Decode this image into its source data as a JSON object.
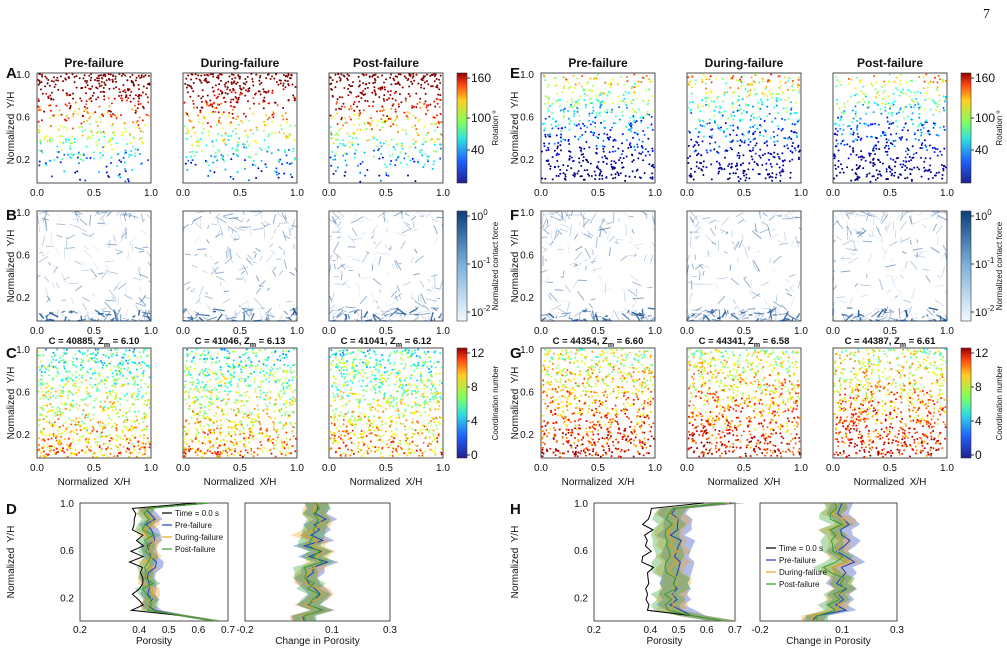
{
  "page_number": "7",
  "y_axis_label": "Normalized  Y/H",
  "x_axis_label": "Normalized  X/H",
  "y_ticks": [
    "0.2",
    "0.6",
    "1.0"
  ],
  "x_ticks": [
    "0.0",
    "0.5",
    "1.0"
  ],
  "halves": [
    {
      "letters": [
        "A",
        "B",
        "C",
        "D"
      ],
      "columns": [
        "Pre-failure",
        "During-failure",
        "Post-failure"
      ],
      "captions": [
        {
          "lead": "C = 40885, Z",
          "sub": "m",
          "tail": " = 6.10"
        },
        {
          "lead": "C = 41046, Z",
          "sub": "m",
          "tail": " = 6.13"
        },
        {
          "lead": "C = 41041, Z",
          "sub": "m",
          "tail": " = 6.12"
        }
      ],
      "legend": [
        "Time = 0.0 s",
        "Pre-failure",
        "During-failure",
        "Post-failure"
      ]
    },
    {
      "letters": [
        "E",
        "F",
        "G",
        "H"
      ],
      "columns": [
        "Pre-failure",
        "During-failure",
        "Post-failure"
      ],
      "captions": [
        {
          "lead": "C = 44354, Z",
          "sub": "m",
          "tail": " = 6.60"
        },
        {
          "lead": "C = 44341, Z",
          "sub": "m",
          "tail": " = 6.58"
        },
        {
          "lead": "C = 44387, Z",
          "sub": "m",
          "tail": " = 6.61"
        }
      ],
      "legend": [
        "Time = 0.0 s",
        "Pre-failure",
        "During-failure",
        "Post-failure"
      ]
    }
  ],
  "colorbars": {
    "rotation": {
      "label": "Rotation º",
      "ticks": [
        "160",
        "100",
        "40"
      ]
    },
    "force": {
      "label": "Normalized contact force",
      "ticks": [
        {
          "base": "10",
          "exp": "0"
        },
        {
          "base": "10",
          "exp": "-1"
        },
        {
          "base": "10",
          "exp": "-2"
        }
      ]
    },
    "coordination": {
      "label": "Coordination number",
      "ticks": [
        "12",
        "8",
        "4",
        "0"
      ]
    }
  },
  "porosity": {
    "x_label": "Porosity",
    "x_ticks": [
      "0.2",
      "0.4",
      "0.5",
      "0.6",
      "0.7"
    ]
  },
  "change": {
    "x_label": "Change in Porosity",
    "x_ticks": [
      "-0.2",
      "0.1",
      "0.3"
    ]
  }
}
